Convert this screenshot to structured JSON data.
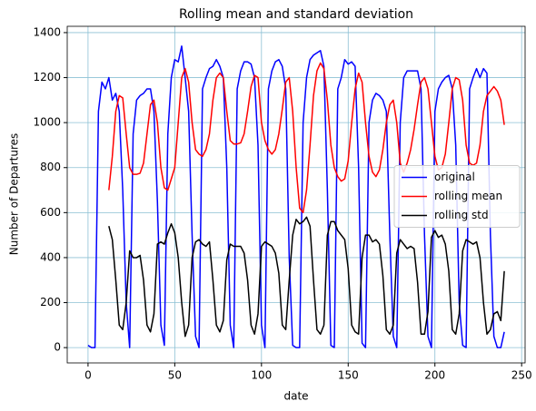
{
  "chart_data": {
    "type": "line",
    "title": "Rolling mean and standard deviation",
    "xlabel": "date",
    "ylabel": "Number of Departures",
    "x": [
      0,
      2,
      4,
      6,
      8,
      10,
      12,
      14,
      16,
      18,
      20,
      22,
      24,
      26,
      28,
      30,
      32,
      34,
      36,
      38,
      40,
      42,
      44,
      46,
      48,
      50,
      52,
      54,
      56,
      58,
      60,
      62,
      64,
      66,
      68,
      70,
      72,
      74,
      76,
      78,
      80,
      82,
      84,
      86,
      88,
      90,
      92,
      94,
      96,
      98,
      100,
      102,
      104,
      106,
      108,
      110,
      112,
      114,
      116,
      118,
      120,
      122,
      124,
      126,
      128,
      130,
      132,
      134,
      136,
      138,
      140,
      142,
      144,
      146,
      148,
      150,
      152,
      154,
      156,
      158,
      160,
      162,
      164,
      166,
      168,
      170,
      172,
      174,
      176,
      178,
      180,
      182,
      184,
      186,
      188,
      190,
      192,
      194,
      196,
      198,
      200,
      202,
      204,
      206,
      208,
      210,
      212,
      214,
      216,
      218,
      220,
      222,
      224,
      226,
      228,
      230,
      232,
      234,
      236,
      238,
      240
    ],
    "series": [
      {
        "name": "original",
        "color": "#0000ff",
        "values": [
          10,
          0,
          0,
          1050,
          1180,
          1150,
          1200,
          1100,
          1130,
          1050,
          700,
          200,
          0,
          950,
          1100,
          1120,
          1130,
          1150,
          1150,
          1050,
          650,
          100,
          10,
          950,
          1200,
          1280,
          1270,
          1340,
          1200,
          1050,
          500,
          50,
          0,
          1150,
          1200,
          1240,
          1250,
          1280,
          1250,
          1200,
          800,
          100,
          0,
          1150,
          1230,
          1270,
          1270,
          1260,
          1200,
          900,
          100,
          0,
          1150,
          1230,
          1270,
          1280,
          1250,
          1150,
          400,
          10,
          0,
          0,
          1000,
          1200,
          1280,
          1300,
          1310,
          1320,
          1250,
          700,
          10,
          0,
          1150,
          1200,
          1280,
          1260,
          1270,
          1250,
          800,
          20,
          0,
          1000,
          1100,
          1130,
          1120,
          1100,
          1050,
          500,
          50,
          0,
          1000,
          1200,
          1230,
          1230,
          1230,
          1230,
          1150,
          500,
          50,
          0,
          1050,
          1150,
          1180,
          1200,
          1210,
          1150,
          900,
          200,
          10,
          0,
          1150,
          1200,
          1240,
          1200,
          1240,
          1220,
          500,
          50,
          0,
          0,
          70
        ]
      },
      {
        "name": "rolling mean",
        "color": "#ff0000",
        "values": [
          null,
          null,
          null,
          null,
          null,
          null,
          700,
          850,
          1050,
          1120,
          1110,
          950,
          800,
          770,
          770,
          775,
          820,
          950,
          1080,
          1100,
          1000,
          800,
          710,
          700,
          750,
          800,
          1000,
          1200,
          1240,
          1180,
          1000,
          880,
          860,
          850,
          880,
          950,
          1100,
          1200,
          1220,
          1200,
          1050,
          920,
          905,
          905,
          910,
          950,
          1050,
          1160,
          1210,
          1200,
          1000,
          920,
          880,
          860,
          880,
          950,
          1060,
          1180,
          1200,
          1050,
          800,
          620,
          600,
          700,
          900,
          1120,
          1230,
          1265,
          1240,
          1100,
          900,
          800,
          760,
          740,
          750,
          830,
          1000,
          1150,
          1220,
          1180,
          1000,
          850,
          780,
          760,
          790,
          880,
          1000,
          1080,
          1100,
          1000,
          820,
          780,
          820,
          880,
          970,
          1080,
          1180,
          1200,
          1150,
          1000,
          850,
          790,
          800,
          860,
          1000,
          1150,
          1200,
          1190,
          1100,
          900,
          820,
          810,
          820,
          900,
          1050,
          1120,
          1140,
          1160,
          1140,
          1100,
          990
        ]
      },
      {
        "name": "rolling std",
        "color": "#000000",
        "values": [
          null,
          null,
          null,
          null,
          null,
          null,
          540,
          480,
          300,
          100,
          80,
          200,
          430,
          400,
          400,
          410,
          300,
          100,
          70,
          150,
          460,
          470,
          460,
          510,
          550,
          510,
          400,
          200,
          50,
          100,
          400,
          470,
          480,
          460,
          450,
          470,
          300,
          100,
          70,
          120,
          390,
          460,
          450,
          450,
          450,
          420,
          300,
          100,
          60,
          150,
          450,
          470,
          460,
          450,
          420,
          330,
          100,
          80,
          300,
          500,
          570,
          550,
          560,
          580,
          540,
          300,
          80,
          60,
          100,
          500,
          560,
          560,
          520,
          500,
          480,
          350,
          100,
          70,
          60,
          400,
          500,
          500,
          470,
          480,
          460,
          320,
          80,
          60,
          100,
          420,
          480,
          460,
          440,
          450,
          440,
          290,
          60,
          60,
          160,
          490,
          520,
          490,
          500,
          460,
          340,
          80,
          60,
          150,
          430,
          480,
          470,
          460,
          470,
          400,
          200,
          60,
          80,
          150,
          160,
          120,
          340
        ]
      }
    ],
    "xlim": [
      -12,
      252
    ],
    "ylim": [
      -68,
      1428
    ],
    "xticks": [
      0,
      50,
      100,
      150,
      200,
      250
    ],
    "yticks": [
      0,
      200,
      400,
      600,
      800,
      1000,
      1200,
      1400
    ],
    "grid": true,
    "legend": "center right"
  }
}
